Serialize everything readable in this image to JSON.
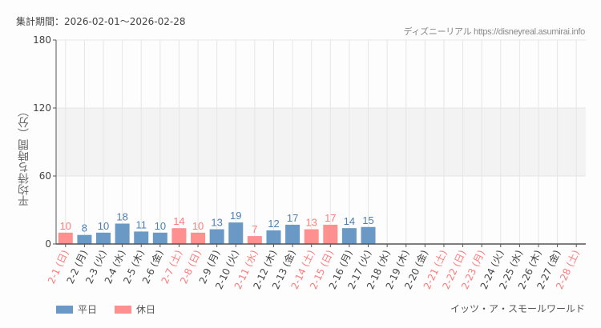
{
  "header": {
    "period": "集計期間：2026-02-01～2026-02-28",
    "credit": "ディズニーリアル https://disneyreal.asumirai.info"
  },
  "footer": {
    "attraction": "イッツ・ア・スモールワールド"
  },
  "legend": [
    {
      "label": "平日",
      "color": "#6a99c6"
    },
    {
      "label": "休日",
      "color": "#ff9090"
    }
  ],
  "colors": {
    "weekday": "#6a99c6",
    "weekday_text": "#4d7fb5",
    "holiday": "#ff9090",
    "holiday_text": "#ff7b7b",
    "band": "#f3f3f3",
    "grid": "#e6e6e6",
    "axis": "#555555"
  },
  "chart_data": {
    "type": "bar",
    "title": "集計期間：2026-02-01～2026-02-28",
    "xlabel": "",
    "ylabel": "平均待ち時間（分）",
    "ylim": [
      0,
      180
    ],
    "yticks": [
      0,
      60,
      120,
      180
    ],
    "shaded_band": [
      60,
      120
    ],
    "grid": true,
    "legend_position": "bottom-left",
    "categories": [
      "2-1 (日)",
      "2-2 (月)",
      "2-3 (火)",
      "2-4 (水)",
      "2-5 (木)",
      "2-6 (金)",
      "2-7 (土)",
      "2-8 (日)",
      "2-9 (月)",
      "2-10 (火)",
      "2-11 (水)",
      "2-12 (木)",
      "2-13 (金)",
      "2-14 (土)",
      "2-15 (日)",
      "2-16 (月)",
      "2-17 (火)",
      "2-18 (水)",
      "2-19 (木)",
      "2-20 (金)",
      "2-21 (土)",
      "2-22 (日)",
      "2-23 (月)",
      "2-24 (火)",
      "2-25 (水)",
      "2-26 (木)",
      "2-27 (金)",
      "2-28 (土)"
    ],
    "holiday": [
      true,
      false,
      false,
      false,
      false,
      false,
      true,
      true,
      false,
      false,
      true,
      false,
      false,
      true,
      true,
      false,
      false,
      false,
      false,
      false,
      true,
      true,
      true,
      false,
      false,
      false,
      false,
      true
    ],
    "values": [
      10,
      8,
      10,
      18,
      11,
      10,
      14,
      10,
      13,
      19,
      7,
      12,
      17,
      13,
      17,
      14,
      15,
      null,
      null,
      null,
      null,
      null,
      null,
      null,
      null,
      null,
      null,
      null
    ],
    "series": [
      {
        "name": "平日",
        "values": [
          null,
          8,
          10,
          18,
          11,
          10,
          null,
          null,
          13,
          19,
          null,
          12,
          17,
          null,
          null,
          14,
          15,
          null,
          null,
          null,
          null,
          null,
          null,
          null,
          null,
          null,
          null,
          null
        ]
      },
      {
        "name": "休日",
        "values": [
          10,
          null,
          null,
          null,
          null,
          null,
          14,
          10,
          null,
          null,
          7,
          null,
          null,
          13,
          17,
          null,
          null,
          null,
          null,
          null,
          null,
          null,
          null,
          null,
          null,
          null,
          null,
          null
        ]
      }
    ]
  }
}
